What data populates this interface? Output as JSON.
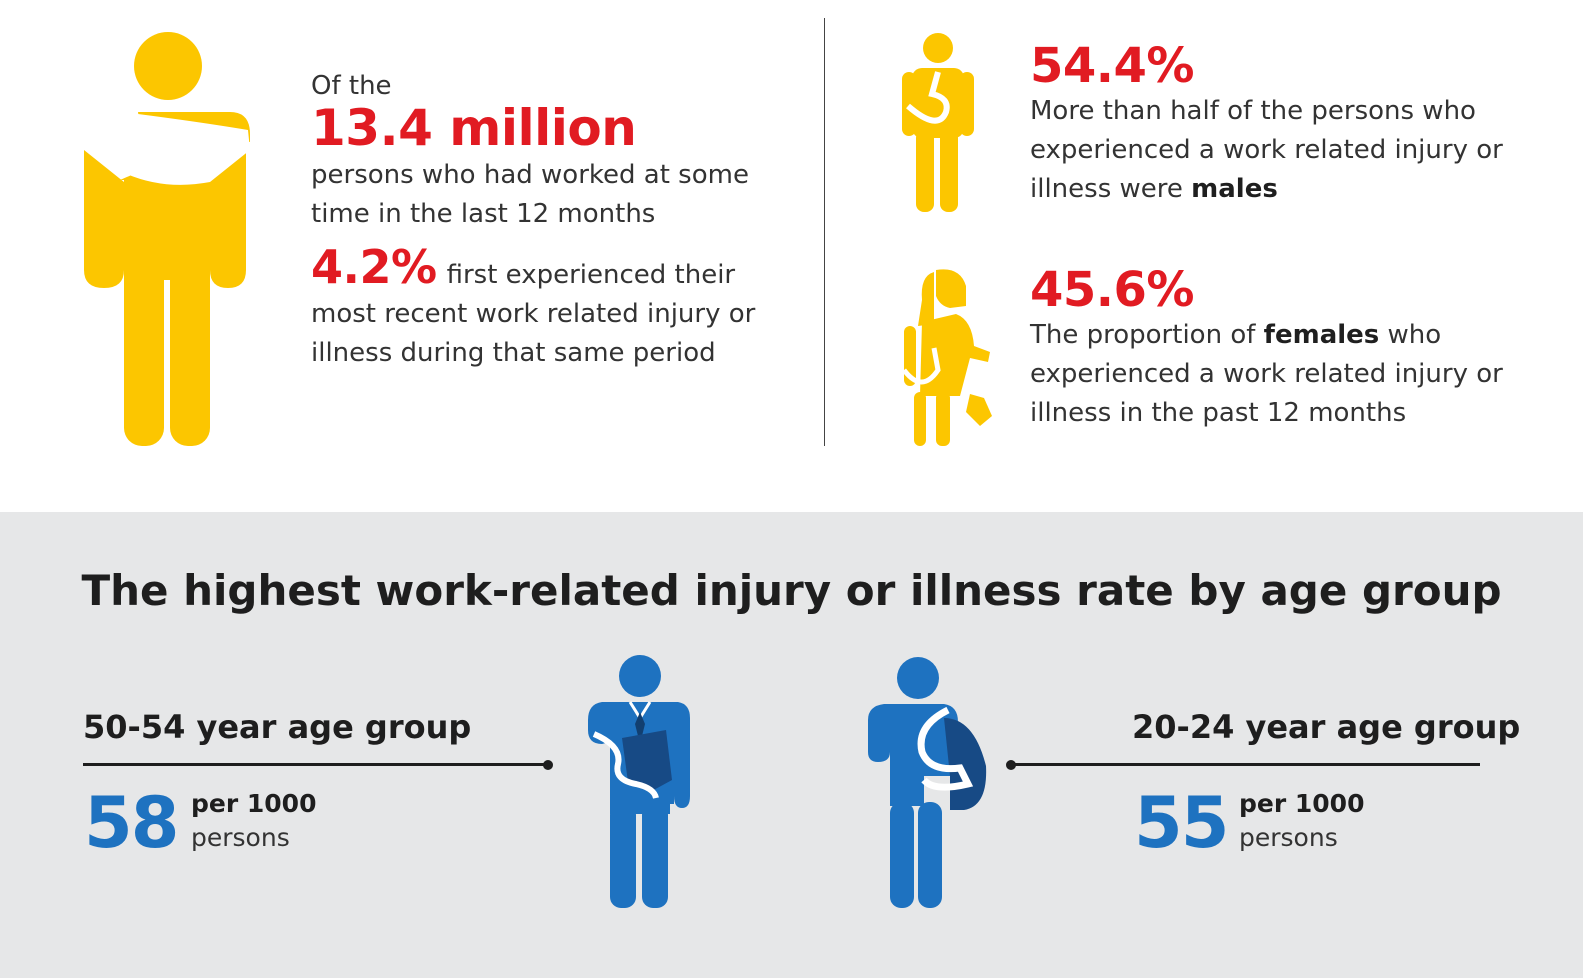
{
  "colors": {
    "accent_red": "#e11b22",
    "figure_yellow": "#fcc600",
    "figure_blue": "#1e72c0",
    "panel_gray": "#e6e7e8"
  },
  "icons": {
    "main": "person-with-arm-sling-icon",
    "male": "male-with-arm-sling-icon",
    "female": "female-with-arm-sling-icon",
    "older": "businessman-with-arm-sling-icon",
    "younger": "worker-with-arm-sling-icon"
  },
  "overview": {
    "of_the": "Of the",
    "total": "13.4 million",
    "total_desc": "persons who had worked at some time in the last 12 months",
    "injury_pct": "4.2%",
    "injury_desc": "first experienced their most recent work related injury or illness during that same period"
  },
  "males": {
    "pct": "54.4%",
    "desc_before": "More than half of the persons who experienced a work related injury or illness were ",
    "desc_bold": "males"
  },
  "females": {
    "pct": "45.6%",
    "desc_before": "The proportion of ",
    "desc_bold": "females",
    "desc_after": " who experienced a work related injury or illness in the past 12 months"
  },
  "age_section": {
    "title": "The highest work-related injury or illness rate by age group",
    "groups": [
      {
        "label": "50-54 year age group",
        "value": "58",
        "unit": "per 1000",
        "unit2": "persons"
      },
      {
        "label": "20-24 year age group",
        "value": "55",
        "unit": "per 1000",
        "unit2": "persons"
      }
    ]
  }
}
